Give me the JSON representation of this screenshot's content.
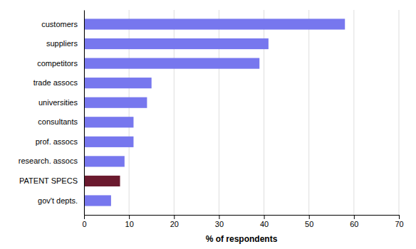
{
  "chart_data": {
    "type": "bar",
    "orientation": "horizontal",
    "categories": [
      "customers",
      "suppliers",
      "competitors",
      "trade assocs",
      "universities",
      "consultants",
      "prof. assocs",
      "research. assocs",
      "PATENT SPECS",
      "gov't depts."
    ],
    "values": [
      58,
      41,
      39,
      15,
      14,
      11,
      11,
      9,
      8,
      6
    ],
    "colors": [
      "#7777ee",
      "#7777ee",
      "#7777ee",
      "#7777ee",
      "#7777ee",
      "#7777ee",
      "#7777ee",
      "#7777ee",
      "#6b1a2e",
      "#7777ee"
    ],
    "xlabel": "% of respondents",
    "xlim": [
      0,
      70
    ],
    "xticks": [
      0,
      10,
      20,
      30,
      40,
      50,
      60,
      70
    ],
    "grid": true
  }
}
